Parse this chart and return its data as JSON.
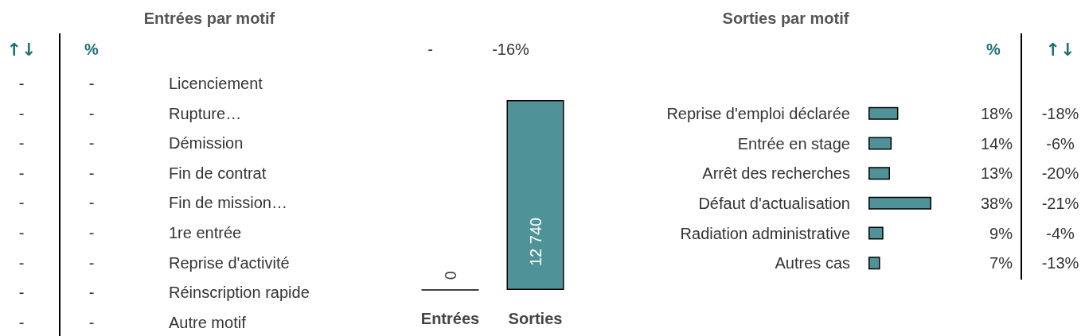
{
  "chart_data": [
    {
      "type": "other",
      "title": "Entrées par motif",
      "categories": [
        "Licenciement",
        "Rupture…",
        "Démission",
        "Fin de contrat",
        "Fin de mission…",
        "1re entrée",
        "Reprise d'activité",
        "Réinscription rapide",
        "Autre motif"
      ],
      "annotations": [
        "↑↓",
        "%",
        "-",
        "-",
        "-",
        "-",
        "-",
        "-",
        "-",
        "-",
        "-",
        "-",
        "-",
        "-",
        "-",
        "-",
        "-",
        "-",
        "-",
        "-"
      ]
    },
    {
      "type": "bar",
      "categories": [
        "Entrées",
        "Sorties"
      ],
      "values": [
        0,
        12740
      ],
      "color": "#4f9399",
      "value_labels": [
        "0",
        "12 740"
      ],
      "annotations": [
        "-",
        "-16%"
      ]
    },
    {
      "type": "bar",
      "orientation": "horizontal",
      "title": "Sorties par motif",
      "categories": [
        "Reprise d'emploi déclarée",
        "Entrée en stage",
        "Arrêt des recherches",
        "Défaut d'actualisation",
        "Radiation administrative",
        "Autres cas"
      ],
      "values": [
        18,
        14,
        13,
        38,
        9,
        7
      ],
      "color": "#4f9399",
      "value_labels": [
        "18%",
        "14%",
        "13%",
        "38%",
        "9%",
        "7%"
      ],
      "annotations": [
        "%",
        "↑↓",
        "-18%",
        "-6%",
        "-20%",
        "-21%",
        "-4%",
        "-13%"
      ]
    }
  ]
}
